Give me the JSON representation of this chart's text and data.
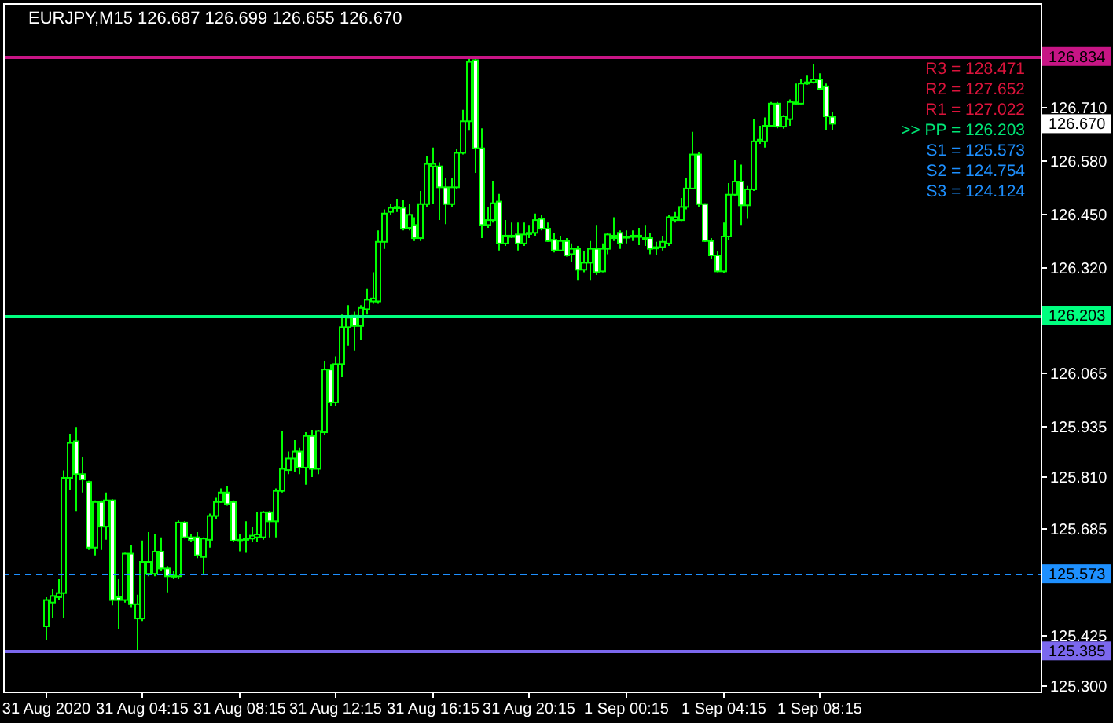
{
  "chart_data": {
    "type": "candlestick",
    "title": "EURJPY,M15  126.687 126.699 126.655 126.670",
    "color": "#00ff00",
    "x": [
      "2020-08-31T00:15",
      "2020-08-31T00:30",
      "2020-08-31T00:45",
      "2020-08-31T01:00",
      "2020-08-31T01:15",
      "2020-08-31T01:30",
      "2020-08-31T01:45",
      "2020-08-31T02:00",
      "2020-08-31T02:15",
      "2020-08-31T02:30",
      "2020-08-31T02:45",
      "2020-08-31T03:00",
      "2020-08-31T03:15",
      "2020-08-31T03:30",
      "2020-08-31T03:45",
      "2020-08-31T04:00",
      "2020-08-31T04:15",
      "2020-08-31T04:30",
      "2020-08-31T04:45",
      "2020-08-31T05:00",
      "2020-08-31T05:15",
      "2020-08-31T05:30",
      "2020-08-31T05:45",
      "2020-08-31T06:00",
      "2020-08-31T06:15",
      "2020-08-31T06:30",
      "2020-08-31T06:45",
      "2020-08-31T07:00",
      "2020-08-31T07:15",
      "2020-08-31T07:30",
      "2020-08-31T07:45",
      "2020-08-31T08:00",
      "2020-08-31T08:15",
      "2020-08-31T08:30",
      "2020-08-31T08:45",
      "2020-08-31T09:00",
      "2020-08-31T09:15",
      "2020-08-31T09:30",
      "2020-08-31T09:45",
      "2020-08-31T10:00",
      "2020-08-31T10:15",
      "2020-08-31T10:30",
      "2020-08-31T10:45",
      "2020-08-31T11:00",
      "2020-08-31T11:15",
      "2020-08-31T11:30",
      "2020-08-31T11:45",
      "2020-08-31T12:00",
      "2020-08-31T12:15",
      "2020-08-31T12:30",
      "2020-08-31T12:45",
      "2020-08-31T13:00",
      "2020-08-31T13:15",
      "2020-08-31T13:30",
      "2020-08-31T13:45",
      "2020-08-31T14:00",
      "2020-08-31T14:15",
      "2020-08-31T14:30",
      "2020-08-31T14:45",
      "2020-08-31T15:00",
      "2020-08-31T15:15",
      "2020-08-31T15:30",
      "2020-08-31T15:45",
      "2020-08-31T16:00",
      "2020-08-31T16:15",
      "2020-08-31T16:30",
      "2020-08-31T16:45",
      "2020-08-31T17:00",
      "2020-08-31T17:15",
      "2020-08-31T17:30",
      "2020-08-31T17:45",
      "2020-08-31T18:00",
      "2020-08-31T18:15",
      "2020-08-31T18:30",
      "2020-08-31T18:45",
      "2020-08-31T19:00",
      "2020-08-31T19:15",
      "2020-08-31T19:30",
      "2020-08-31T19:45",
      "2020-08-31T20:00",
      "2020-08-31T20:15",
      "2020-08-31T20:30",
      "2020-08-31T20:45",
      "2020-08-31T21:00",
      "2020-08-31T21:15",
      "2020-08-31T21:30",
      "2020-08-31T21:45",
      "2020-08-31T22:00",
      "2020-08-31T22:15",
      "2020-08-31T22:30",
      "2020-08-31T22:45",
      "2020-08-31T23:00",
      "2020-08-31T23:15",
      "2020-08-31T23:30",
      "2020-08-31T23:45",
      "2020-09-01T00:00",
      "2020-09-01T00:15",
      "2020-09-01T00:30",
      "2020-09-01T00:45",
      "2020-09-01T01:00",
      "2020-09-01T01:15",
      "2020-09-01T01:30",
      "2020-09-01T01:45",
      "2020-09-01T02:00",
      "2020-09-01T02:15",
      "2020-09-01T02:30",
      "2020-09-01T02:45",
      "2020-09-01T03:00",
      "2020-09-01T03:15",
      "2020-09-01T03:30",
      "2020-09-01T03:45",
      "2020-09-01T04:00",
      "2020-09-01T04:15",
      "2020-09-01T04:30",
      "2020-09-01T04:45",
      "2020-09-01T05:00",
      "2020-09-01T05:15",
      "2020-09-01T05:30",
      "2020-09-01T05:45",
      "2020-09-01T06:00",
      "2020-09-01T06:15",
      "2020-09-01T06:30",
      "2020-09-01T06:45",
      "2020-09-01T07:00",
      "2020-09-01T07:15",
      "2020-09-01T07:30",
      "2020-09-01T07:45",
      "2020-09-01T08:00",
      "2020-09-01T08:15",
      "2020-09-01T08:30",
      "2020-09-01T08:45"
    ],
    "ohlc": [
      [
        125.445,
        125.516,
        125.411,
        125.509
      ],
      [
        125.503,
        125.535,
        125.464,
        125.519
      ],
      [
        125.516,
        125.56,
        125.509,
        125.526
      ],
      [
        125.526,
        125.825,
        125.464,
        125.807
      ],
      [
        125.807,
        125.914,
        125.777,
        125.892
      ],
      [
        125.896,
        125.931,
        125.726,
        125.816
      ],
      [
        125.816,
        125.858,
        125.771,
        125.803
      ],
      [
        125.797,
        125.8,
        125.631,
        125.637
      ],
      [
        125.637,
        125.752,
        125.618,
        125.748
      ],
      [
        125.748,
        125.752,
        125.631,
        125.688
      ],
      [
        125.688,
        125.771,
        125.656,
        125.752
      ],
      [
        125.752,
        125.755,
        125.496,
        125.509
      ],
      [
        125.516,
        125.56,
        125.439,
        125.509
      ],
      [
        125.509,
        125.624,
        125.503,
        125.622
      ],
      [
        125.622,
        125.643,
        125.49,
        125.499
      ],
      [
        125.464,
        125.522,
        125.385,
        125.499
      ],
      [
        125.464,
        125.654,
        125.458,
        125.602
      ],
      [
        125.573,
        125.675,
        125.567,
        125.602
      ],
      [
        125.573,
        125.669,
        125.567,
        125.627
      ],
      [
        125.627,
        125.662,
        125.579,
        125.586
      ],
      [
        125.586,
        125.592,
        125.528,
        125.567
      ],
      [
        125.567,
        125.579,
        125.56,
        125.569
      ],
      [
        125.567,
        125.703,
        125.56,
        125.698
      ],
      [
        125.698,
        125.701,
        125.659,
        125.662
      ],
      [
        125.662,
        125.671,
        125.65,
        125.656
      ],
      [
        125.662,
        125.675,
        125.611,
        125.618
      ],
      [
        125.614,
        125.662,
        125.573,
        125.659
      ],
      [
        125.656,
        125.72,
        125.637,
        125.714
      ],
      [
        125.714,
        125.758,
        125.707,
        125.748
      ],
      [
        125.748,
        125.781,
        125.746,
        125.771
      ],
      [
        125.771,
        125.786,
        125.739,
        125.743
      ],
      [
        125.748,
        125.752,
        125.65,
        125.654
      ],
      [
        125.654,
        125.671,
        125.628,
        125.656
      ],
      [
        125.656,
        125.701,
        125.624,
        125.659
      ],
      [
        125.659,
        125.688,
        125.65,
        125.666
      ],
      [
        125.662,
        125.723,
        125.65,
        125.669
      ],
      [
        125.662,
        125.726,
        125.656,
        125.723
      ],
      [
        125.723,
        125.726,
        125.662,
        125.701
      ],
      [
        125.701,
        125.781,
        125.662,
        125.775
      ],
      [
        125.775,
        125.922,
        125.771,
        125.829
      ],
      [
        125.826,
        125.871,
        125.816,
        125.854
      ],
      [
        125.854,
        125.899,
        125.822,
        125.871
      ],
      [
        125.871,
        125.88,
        125.816,
        125.832
      ],
      [
        125.832,
        125.918,
        125.79,
        125.909
      ],
      [
        125.909,
        125.924,
        125.809,
        125.829
      ],
      [
        125.829,
        125.924,
        125.816,
        125.921
      ],
      [
        125.918,
        126.091,
        125.912,
        126.071
      ],
      [
        126.071,
        126.084,
        125.982,
        125.991
      ],
      [
        125.991,
        126.103,
        125.982,
        126.084
      ],
      [
        126.084,
        126.205,
        126.052,
        126.174
      ],
      [
        126.174,
        126.228,
        126.129,
        126.197
      ],
      [
        126.202,
        126.212,
        126.116,
        126.177
      ],
      [
        126.177,
        126.228,
        126.142,
        126.221
      ],
      [
        126.218,
        126.267,
        126.205,
        126.241
      ],
      [
        126.237,
        126.308,
        126.231,
        126.244
      ],
      [
        126.237,
        126.41,
        126.231,
        126.382
      ],
      [
        126.382,
        126.461,
        126.365,
        126.451
      ],
      [
        126.455,
        126.474,
        126.448,
        126.465
      ],
      [
        126.465,
        126.487,
        126.455,
        126.467
      ],
      [
        126.465,
        126.484,
        126.41,
        126.414
      ],
      [
        126.416,
        126.474,
        126.41,
        126.448
      ],
      [
        126.423,
        126.442,
        126.384,
        126.391
      ],
      [
        126.391,
        126.506,
        126.384,
        126.474
      ],
      [
        126.474,
        126.591,
        126.467,
        126.572
      ],
      [
        126.566,
        126.612,
        126.474,
        126.572
      ],
      [
        126.566,
        126.576,
        126.435,
        126.515
      ],
      [
        126.515,
        126.538,
        126.425,
        126.474
      ],
      [
        126.474,
        126.538,
        126.467,
        126.515
      ],
      [
        126.515,
        126.608,
        126.512,
        126.599
      ],
      [
        126.599,
        126.704,
        126.595,
        126.676
      ],
      [
        126.676,
        126.834,
        126.653,
        126.821
      ],
      [
        126.825,
        126.83,
        126.55,
        126.61
      ],
      [
        126.61,
        126.659,
        126.391,
        126.423
      ],
      [
        126.423,
        126.467,
        126.416,
        126.435
      ],
      [
        126.435,
        126.531,
        126.429,
        126.476
      ],
      [
        126.48,
        126.499,
        126.361,
        126.378
      ],
      [
        126.378,
        126.435,
        126.372,
        126.397
      ],
      [
        126.397,
        126.429,
        126.391,
        126.395
      ],
      [
        126.4,
        126.429,
        126.361,
        126.378
      ],
      [
        126.378,
        126.429,
        126.372,
        126.4
      ],
      [
        126.404,
        126.423,
        126.391,
        126.402
      ],
      [
        126.404,
        126.451,
        126.397,
        126.435
      ],
      [
        126.438,
        126.448,
        126.41,
        126.414
      ],
      [
        126.414,
        126.429,
        126.382,
        126.384
      ],
      [
        126.387,
        126.404,
        126.356,
        126.361
      ],
      [
        126.361,
        126.397,
        126.359,
        126.384
      ],
      [
        126.384,
        126.391,
        126.346,
        126.349
      ],
      [
        126.352,
        126.378,
        126.333,
        126.365
      ],
      [
        126.365,
        126.372,
        126.289,
        126.314
      ],
      [
        126.314,
        126.359,
        126.308,
        126.331
      ],
      [
        126.331,
        126.384,
        126.289,
        126.365
      ],
      [
        126.365,
        126.423,
        126.301,
        126.308
      ],
      [
        126.31,
        126.378,
        126.308,
        126.365
      ],
      [
        126.365,
        126.404,
        126.352,
        126.4
      ],
      [
        126.397,
        126.442,
        126.384,
        126.391
      ],
      [
        126.404,
        126.41,
        126.365,
        126.378
      ],
      [
        126.395,
        126.41,
        126.378,
        126.393
      ],
      [
        126.395,
        126.41,
        126.384,
        126.397
      ],
      [
        126.397,
        126.416,
        126.374,
        126.395
      ],
      [
        126.391,
        126.423,
        126.372,
        126.389
      ],
      [
        126.391,
        126.404,
        126.352,
        126.365
      ],
      [
        126.369,
        126.382,
        126.349,
        126.367
      ],
      [
        126.369,
        126.397,
        126.361,
        126.382
      ],
      [
        126.378,
        126.448,
        126.372,
        126.442
      ],
      [
        126.435,
        126.455,
        126.429,
        126.442
      ],
      [
        126.435,
        126.489,
        126.433,
        126.467
      ],
      [
        126.467,
        126.538,
        126.461,
        126.512
      ],
      [
        126.512,
        126.65,
        126.51,
        126.595
      ],
      [
        126.595,
        126.602,
        126.467,
        126.474
      ],
      [
        126.474,
        126.476,
        126.382,
        126.384
      ],
      [
        126.384,
        126.391,
        126.34,
        126.349
      ],
      [
        126.349,
        126.359,
        126.308,
        126.31
      ],
      [
        126.31,
        126.429,
        126.306,
        126.395
      ],
      [
        126.395,
        126.525,
        126.387,
        126.497
      ],
      [
        126.497,
        126.582,
        126.493,
        126.529
      ],
      [
        126.529,
        126.57,
        126.423,
        126.471
      ],
      [
        126.471,
        126.518,
        126.438,
        126.51
      ],
      [
        126.51,
        126.681,
        126.506,
        126.627
      ],
      [
        126.627,
        126.665,
        126.621,
        126.631
      ],
      [
        126.627,
        126.685,
        126.612,
        126.665
      ],
      [
        126.665,
        126.723,
        126.662,
        126.719
      ],
      [
        126.719,
        126.723,
        126.659,
        126.663
      ],
      [
        126.663,
        126.691,
        126.658,
        126.688
      ],
      [
        126.681,
        126.729,
        126.665,
        126.723
      ],
      [
        126.719,
        126.768,
        126.717,
        126.722
      ],
      [
        126.719,
        126.78,
        126.717,
        126.768
      ],
      [
        126.768,
        126.787,
        126.765,
        126.771
      ],
      [
        126.771,
        126.815,
        126.768,
        126.778
      ],
      [
        126.778,
        126.793,
        126.752,
        126.755
      ],
      [
        126.761,
        126.768,
        126.655,
        126.688
      ],
      [
        126.687,
        126.699,
        126.655,
        126.67
      ]
    ],
    "xlim": [
      "2020-08-30T22:30",
      "2020-09-01T17:25"
    ],
    "xticks": [
      {
        "value": "2020-08-31T00:15",
        "label": "31 Aug 2020"
      },
      {
        "value": "2020-08-31T04:15",
        "label": "31 Aug 04:15"
      },
      {
        "value": "2020-08-31T08:15",
        "label": "31 Aug 08:15"
      },
      {
        "value": "2020-08-31T12:15",
        "label": "31 Aug 12:15"
      },
      {
        "value": "2020-08-31T16:15",
        "label": "31 Aug 16:15"
      },
      {
        "value": "2020-08-31T20:15",
        "label": "31 Aug 20:15"
      },
      {
        "value": "2020-09-01T00:15",
        "label": "1 Sep 00:15"
      },
      {
        "value": "2020-09-01T04:15",
        "label": "1 Sep 04:15"
      },
      {
        "value": "2020-09-01T08:15",
        "label": "1 Sep 08:15"
      }
    ],
    "ylim": [
      125.286,
      126.96
    ],
    "yticks": [
      {
        "value": 126.71,
        "label": "126.710"
      },
      {
        "value": 126.58,
        "label": "126.580"
      },
      {
        "value": 126.45,
        "label": "126.450"
      },
      {
        "value": 126.32,
        "label": "126.320"
      },
      {
        "value": 126.065,
        "label": "126.065"
      },
      {
        "value": 125.935,
        "label": "125.935"
      },
      {
        "value": 125.81,
        "label": "125.810"
      },
      {
        "value": 125.685,
        "label": "125.685"
      },
      {
        "value": 125.425,
        "label": "125.425"
      },
      {
        "value": 125.3,
        "label": "125.300"
      }
    ],
    "ref_lines": [
      {
        "axis": "y",
        "value": 126.834,
        "label": "126.834",
        "color": "#c71585"
      },
      {
        "axis": "y",
        "value": 126.203,
        "label": "126.203",
        "color": "#00ff7f"
      },
      {
        "axis": "y",
        "value": 125.573,
        "label": "125.573",
        "color": "#1e90ff",
        "line_style": "dashed"
      },
      {
        "axis": "y",
        "value": 125.385,
        "label": "125.385",
        "color": "#7b68ee"
      }
    ],
    "annotations": [
      "126.670",
      "R3 = 128.471",
      "R2 = 127.652",
      "R1 = 127.022",
      ">> PP = 126.203",
      "S1 = 125.573",
      "S2 = 124.754",
      "S3 = 124.124"
    ]
  }
}
